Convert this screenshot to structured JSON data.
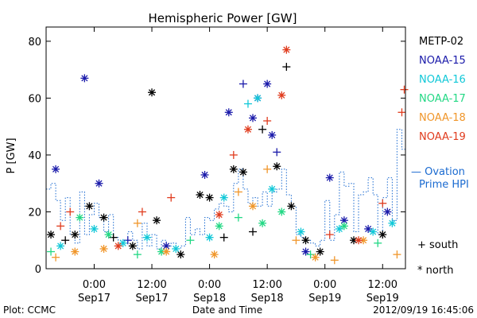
{
  "footer": {
    "left": "Plot: CCMC",
    "center": "Date and Time",
    "right": "2012/09/19 16:45:06"
  },
  "chart_data": {
    "type": "scatter",
    "title": "Hemispheric Power [GW]",
    "ylabel": "P [GW]",
    "xlabel": "Date and Time",
    "ylim": [
      0,
      85
    ],
    "xlim": [
      "2012-09-16T14:00",
      "2012-09-19T16:45"
    ],
    "y_ticks": [
      0,
      20,
      40,
      60,
      80
    ],
    "x_ticks": [
      {
        "t": "2012-09-17T00:00",
        "line1": "0:00",
        "line2": "Sep17"
      },
      {
        "t": "2012-09-17T12:00",
        "line1": "12:00",
        "line2": "Sep17"
      },
      {
        "t": "2012-09-18T00:00",
        "line1": "0:00",
        "line2": "Sep18"
      },
      {
        "t": "2012-09-18T12:00",
        "line1": "12:00",
        "line2": "Sep18"
      },
      {
        "t": "2012-09-19T00:00",
        "line1": "0:00",
        "line2": "Sep19"
      },
      {
        "t": "2012-09-19T12:00",
        "line1": "12:00",
        "line2": "Sep19"
      }
    ],
    "legend": {
      "placement": "right",
      "entries": [
        {
          "name": "METP-02",
          "color": "#000000"
        },
        {
          "name": "NOAA-15",
          "color": "#1a1aaa"
        },
        {
          "name": "NOAA-16",
          "color": "#11c8d8"
        },
        {
          "name": "NOAA-17",
          "color": "#22d884"
        },
        {
          "name": "NOAA-18",
          "color": "#f0962a"
        },
        {
          "name": "NOAA-19",
          "color": "#e03c1e"
        }
      ],
      "ovation_label": [
        "— Ovation",
        "Prime HPI"
      ],
      "ovation_color": "#1a6ad0",
      "south_label": "+ south",
      "north_label": "* north"
    },
    "ovation_hpi": [
      [
        "2012-09-16T14:00",
        28
      ],
      [
        "2012-09-16T15:00",
        30
      ],
      [
        "2012-09-16T16:00",
        24
      ],
      [
        "2012-09-16T17:00",
        17
      ],
      [
        "2012-09-16T18:00",
        25
      ],
      [
        "2012-09-16T19:00",
        12
      ],
      [
        "2012-09-16T20:00",
        9
      ],
      [
        "2012-09-16T21:00",
        27
      ],
      [
        "2012-09-16T22:00",
        12
      ],
      [
        "2012-09-16T23:00",
        19
      ],
      [
        "2012-09-17T00:00",
        23
      ],
      [
        "2012-09-17T01:00",
        18
      ],
      [
        "2012-09-17T02:00",
        13
      ],
      [
        "2012-09-17T03:00",
        19
      ],
      [
        "2012-09-17T04:00",
        11
      ],
      [
        "2012-09-17T05:00",
        10
      ],
      [
        "2012-09-17T06:00",
        9
      ],
      [
        "2012-09-17T07:00",
        13
      ],
      [
        "2012-09-17T08:00",
        10
      ],
      [
        "2012-09-17T09:00",
        7
      ],
      [
        "2012-09-17T10:00",
        16
      ],
      [
        "2012-09-17T11:00",
        8
      ],
      [
        "2012-09-17T12:00",
        12
      ],
      [
        "2012-09-17T13:00",
        7
      ],
      [
        "2012-09-17T14:00",
        10
      ],
      [
        "2012-09-17T15:00",
        8
      ],
      [
        "2012-09-17T16:00",
        9
      ],
      [
        "2012-09-17T17:00",
        7
      ],
      [
        "2012-09-17T18:00",
        8
      ],
      [
        "2012-09-17T19:00",
        18
      ],
      [
        "2012-09-17T20:00",
        12
      ],
      [
        "2012-09-17T21:00",
        14
      ],
      [
        "2012-09-17T22:00",
        12
      ],
      [
        "2012-09-17T23:00",
        18
      ],
      [
        "2012-09-18T00:00",
        17
      ],
      [
        "2012-09-18T01:00",
        21
      ],
      [
        "2012-09-18T02:00",
        23
      ],
      [
        "2012-09-18T03:00",
        22
      ],
      [
        "2012-09-18T04:00",
        20
      ],
      [
        "2012-09-18T05:00",
        30
      ],
      [
        "2012-09-18T06:00",
        35
      ],
      [
        "2012-09-18T07:00",
        28
      ],
      [
        "2012-09-18T08:00",
        23
      ],
      [
        "2012-09-18T09:00",
        25
      ],
      [
        "2012-09-18T10:00",
        22
      ],
      [
        "2012-09-18T11:00",
        27
      ],
      [
        "2012-09-18T12:00",
        22
      ],
      [
        "2012-09-18T13:00",
        27
      ],
      [
        "2012-09-18T14:00",
        28
      ],
      [
        "2012-09-18T15:00",
        35
      ],
      [
        "2012-09-18T16:00",
        26
      ],
      [
        "2012-09-18T17:00",
        22
      ],
      [
        "2012-09-18T18:00",
        12
      ],
      [
        "2012-09-18T19:00",
        11
      ],
      [
        "2012-09-18T20:00",
        10
      ],
      [
        "2012-09-18T21:00",
        9
      ],
      [
        "2012-09-18T22:00",
        8
      ],
      [
        "2012-09-18T23:00",
        10
      ],
      [
        "2012-09-19T00:00",
        24
      ],
      [
        "2012-09-19T01:00",
        10
      ],
      [
        "2012-09-19T02:00",
        19
      ],
      [
        "2012-09-19T03:00",
        34
      ],
      [
        "2012-09-19T04:00",
        29
      ],
      [
        "2012-09-19T05:00",
        30
      ],
      [
        "2012-09-19T06:00",
        13
      ],
      [
        "2012-09-19T07:00",
        26
      ],
      [
        "2012-09-19T08:00",
        27
      ],
      [
        "2012-09-19T09:00",
        32
      ],
      [
        "2012-09-19T10:00",
        26
      ],
      [
        "2012-09-19T11:00",
        12
      ],
      [
        "2012-09-19T12:00",
        25
      ],
      [
        "2012-09-19T13:00",
        32
      ],
      [
        "2012-09-19T14:00",
        17
      ],
      [
        "2012-09-19T15:00",
        49
      ],
      [
        "2012-09-19T16:00",
        42
      ]
    ],
    "series": [
      {
        "name": "METP-02",
        "color": "#000000",
        "points": [
          [
            "2012-09-16T15:00",
            12,
            "N"
          ],
          [
            "2012-09-16T18:00",
            10,
            "S"
          ],
          [
            "2012-09-16T20:00",
            12,
            "N"
          ],
          [
            "2012-09-16T23:00",
            22,
            "N"
          ],
          [
            "2012-09-17T02:00",
            18,
            "N"
          ],
          [
            "2012-09-17T04:00",
            11,
            "S"
          ],
          [
            "2012-09-17T08:00",
            8,
            "N"
          ],
          [
            "2012-09-17T12:00",
            62,
            "N"
          ],
          [
            "2012-09-17T13:00",
            17,
            "N"
          ],
          [
            "2012-09-17T18:00",
            5,
            "N"
          ],
          [
            "2012-09-17T22:00",
            26,
            "N"
          ],
          [
            "2012-09-18T00:00",
            25,
            "N"
          ],
          [
            "2012-09-18T03:00",
            11,
            "S"
          ],
          [
            "2012-09-18T05:00",
            35,
            "N"
          ],
          [
            "2012-09-18T07:00",
            34,
            "N"
          ],
          [
            "2012-09-18T09:00",
            13,
            "S"
          ],
          [
            "2012-09-18T11:00",
            49,
            "S"
          ],
          [
            "2012-09-18T14:00",
            36,
            "N"
          ],
          [
            "2012-09-18T16:00",
            71,
            "S"
          ],
          [
            "2012-09-18T17:00",
            22,
            "N"
          ],
          [
            "2012-09-18T20:00",
            10,
            "N"
          ],
          [
            "2012-09-18T23:00",
            6,
            "N"
          ],
          [
            "2012-09-19T06:00",
            10,
            "N"
          ],
          [
            "2012-09-19T12:00",
            12,
            "N"
          ]
        ]
      },
      {
        "name": "NOAA-15",
        "color": "#1a1aaa",
        "points": [
          [
            "2012-09-16T16:00",
            35,
            "N"
          ],
          [
            "2012-09-16T22:00",
            67,
            "N"
          ],
          [
            "2012-09-17T01:00",
            30,
            "N"
          ],
          [
            "2012-09-17T07:00",
            10,
            "S"
          ],
          [
            "2012-09-17T15:00",
            8,
            "N"
          ],
          [
            "2012-09-17T23:00",
            33,
            "N"
          ],
          [
            "2012-09-18T04:00",
            55,
            "N"
          ],
          [
            "2012-09-18T07:00",
            65,
            "S"
          ],
          [
            "2012-09-18T09:00",
            53,
            "N"
          ],
          [
            "2012-09-18T10:00",
            60,
            "N"
          ],
          [
            "2012-09-18T12:00",
            65,
            "N"
          ],
          [
            "2012-09-18T13:00",
            47,
            "N"
          ],
          [
            "2012-09-18T14:00",
            41,
            "S"
          ],
          [
            "2012-09-18T20:00",
            6,
            "N"
          ],
          [
            "2012-09-19T01:00",
            32,
            "N"
          ],
          [
            "2012-09-19T04:00",
            17,
            "N"
          ],
          [
            "2012-09-19T09:00",
            14,
            "N"
          ],
          [
            "2012-09-19T13:00",
            20,
            "N"
          ]
        ]
      },
      {
        "name": "NOAA-16",
        "color": "#11c8d8",
        "points": [
          [
            "2012-09-16T17:00",
            8,
            "N"
          ],
          [
            "2012-09-17T00:00",
            14,
            "N"
          ],
          [
            "2012-09-17T06:00",
            9,
            "N"
          ],
          [
            "2012-09-17T11:00",
            11,
            "N"
          ],
          [
            "2012-09-17T17:00",
            7,
            "N"
          ],
          [
            "2012-09-18T00:00",
            11,
            "N"
          ],
          [
            "2012-09-18T03:00",
            25,
            "N"
          ],
          [
            "2012-09-18T08:00",
            58,
            "S"
          ],
          [
            "2012-09-18T10:00",
            60,
            "N"
          ],
          [
            "2012-09-18T13:00",
            28,
            "N"
          ],
          [
            "2012-09-18T19:00",
            13,
            "N"
          ],
          [
            "2012-09-19T03:00",
            14,
            "N"
          ],
          [
            "2012-09-19T10:00",
            13,
            "N"
          ],
          [
            "2012-09-19T14:00",
            16,
            "N"
          ]
        ]
      },
      {
        "name": "NOAA-17",
        "color": "#22d884",
        "points": [
          [
            "2012-09-16T15:00",
            6,
            "S"
          ],
          [
            "2012-09-16T21:00",
            18,
            "N"
          ],
          [
            "2012-09-17T03:00",
            12,
            "N"
          ],
          [
            "2012-09-17T09:00",
            5,
            "S"
          ],
          [
            "2012-09-17T14:00",
            6,
            "N"
          ],
          [
            "2012-09-17T20:00",
            10,
            "S"
          ],
          [
            "2012-09-18T02:00",
            15,
            "N"
          ],
          [
            "2012-09-18T06:00",
            18,
            "S"
          ],
          [
            "2012-09-18T11:00",
            16,
            "N"
          ],
          [
            "2012-09-18T15:00",
            20,
            "N"
          ],
          [
            "2012-09-18T21:00",
            5,
            "S"
          ],
          [
            "2012-09-19T04:00",
            15,
            "N"
          ],
          [
            "2012-09-19T11:00",
            9,
            "S"
          ]
        ]
      },
      {
        "name": "NOAA-18",
        "color": "#f0962a",
        "points": [
          [
            "2012-09-16T16:00",
            4,
            "S"
          ],
          [
            "2012-09-16T20:00",
            6,
            "N"
          ],
          [
            "2012-09-17T02:00",
            7,
            "N"
          ],
          [
            "2012-09-17T09:00",
            16,
            "S"
          ],
          [
            "2012-09-17T15:00",
            6,
            "N"
          ],
          [
            "2012-09-18T01:00",
            5,
            "N"
          ],
          [
            "2012-09-18T06:00",
            27,
            "S"
          ],
          [
            "2012-09-18T09:00",
            22,
            "N"
          ],
          [
            "2012-09-18T12:00",
            35,
            "S"
          ],
          [
            "2012-09-18T18:00",
            10,
            "S"
          ],
          [
            "2012-09-18T22:00",
            4,
            "N"
          ],
          [
            "2012-09-19T02:00",
            3,
            "S"
          ],
          [
            "2012-09-19T08:00",
            10,
            "N"
          ],
          [
            "2012-09-19T15:00",
            5,
            "S"
          ]
        ]
      },
      {
        "name": "NOAA-19",
        "color": "#e03c1e",
        "points": [
          [
            "2012-09-16T17:00",
            15,
            "S"
          ],
          [
            "2012-09-16T19:00",
            20,
            "S"
          ],
          [
            "2012-09-17T05:00",
            8,
            "N"
          ],
          [
            "2012-09-17T10:00",
            20,
            "S"
          ],
          [
            "2012-09-17T16:00",
            25,
            "S"
          ],
          [
            "2012-09-18T02:00",
            19,
            "N"
          ],
          [
            "2012-09-18T05:00",
            40,
            "S"
          ],
          [
            "2012-09-18T08:00",
            49,
            "N"
          ],
          [
            "2012-09-18T12:00",
            52,
            "S"
          ],
          [
            "2012-09-18T15:00",
            61,
            "N"
          ],
          [
            "2012-09-18T16:00",
            77,
            "N"
          ],
          [
            "2012-09-19T01:00",
            12,
            "S"
          ],
          [
            "2012-09-19T07:00",
            10,
            "N"
          ],
          [
            "2012-09-19T12:00",
            23,
            "S"
          ],
          [
            "2012-09-19T16:00",
            55,
            "S"
          ],
          [
            "2012-09-19T16:30",
            63,
            "S"
          ]
        ]
      }
    ]
  }
}
